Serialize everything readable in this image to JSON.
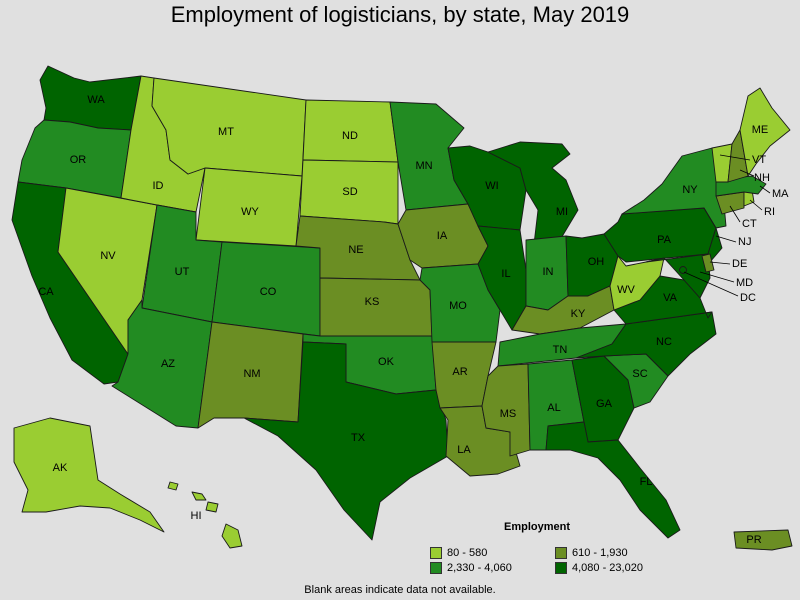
{
  "title": "Employment of logisticians, by state, May 2019",
  "legend": {
    "title": "Employment",
    "items": [
      {
        "range": "80 - 580",
        "color": "#9acd32"
      },
      {
        "range": "610 - 1,930",
        "color": "#6b8e23"
      },
      {
        "range": "2,330 - 4,060",
        "color": "#228b22"
      },
      {
        "range": "4,080 - 23,020",
        "color": "#006400"
      }
    ]
  },
  "footnote": "Blank areas indicate data not available.",
  "states": {
    "WA": {
      "label": "WA",
      "color": "#006400"
    },
    "OR": {
      "label": "OR",
      "color": "#228b22"
    },
    "CA": {
      "label": "CA",
      "color": "#006400"
    },
    "ID": {
      "label": "ID",
      "color": "#9acd32"
    },
    "NV": {
      "label": "NV",
      "color": "#9acd32"
    },
    "MT": {
      "label": "MT",
      "color": "#9acd32"
    },
    "WY": {
      "label": "WY",
      "color": "#9acd32"
    },
    "UT": {
      "label": "UT",
      "color": "#228b22"
    },
    "AZ": {
      "label": "AZ",
      "color": "#228b22"
    },
    "CO": {
      "label": "CO",
      "color": "#228b22"
    },
    "NM": {
      "label": "NM",
      "color": "#6b8e23"
    },
    "ND": {
      "label": "ND",
      "color": "#9acd32"
    },
    "SD": {
      "label": "SD",
      "color": "#9acd32"
    },
    "NE": {
      "label": "NE",
      "color": "#6b8e23"
    },
    "KS": {
      "label": "KS",
      "color": "#6b8e23"
    },
    "OK": {
      "label": "OK",
      "color": "#228b22"
    },
    "TX": {
      "label": "TX",
      "color": "#006400"
    },
    "MN": {
      "label": "MN",
      "color": "#228b22"
    },
    "IA": {
      "label": "IA",
      "color": "#6b8e23"
    },
    "MO": {
      "label": "MO",
      "color": "#228b22"
    },
    "AR": {
      "label": "AR",
      "color": "#6b8e23"
    },
    "LA": {
      "label": "LA",
      "color": "#6b8e23"
    },
    "WI": {
      "label": "WI",
      "color": "#006400"
    },
    "IL": {
      "label": "IL",
      "color": "#006400"
    },
    "MI": {
      "label": "MI",
      "color": "#006400"
    },
    "IN": {
      "label": "IN",
      "color": "#228b22"
    },
    "OH": {
      "label": "OH",
      "color": "#006400"
    },
    "KY": {
      "label": "KY",
      "color": "#6b8e23"
    },
    "TN": {
      "label": "TN",
      "color": "#228b22"
    },
    "MS": {
      "label": "MS",
      "color": "#6b8e23"
    },
    "AL": {
      "label": "AL",
      "color": "#228b22"
    },
    "GA": {
      "label": "GA",
      "color": "#006400"
    },
    "FL": {
      "label": "FL",
      "color": "#006400"
    },
    "SC": {
      "label": "SC",
      "color": "#228b22"
    },
    "NC": {
      "label": "NC",
      "color": "#006400"
    },
    "VA": {
      "label": "VA",
      "color": "#006400"
    },
    "WV": {
      "label": "WV",
      "color": "#9acd32"
    },
    "PA": {
      "label": "PA",
      "color": "#006400"
    },
    "NY": {
      "label": "NY",
      "color": "#228b22"
    },
    "NJ": {
      "label": "NJ",
      "color": "#006400"
    },
    "DE": {
      "label": "DE",
      "color": "#6b8e23"
    },
    "MD": {
      "label": "MD",
      "color": "#006400"
    },
    "DC": {
      "label": "DC",
      "color": "#006400"
    },
    "CT": {
      "label": "CT",
      "color": "#6b8e23"
    },
    "RI": {
      "label": "RI",
      "color": "#9acd32"
    },
    "MA": {
      "label": "MA",
      "color": "#228b22"
    },
    "VT": {
      "label": "VT",
      "color": "#9acd32"
    },
    "NH": {
      "label": "NH",
      "color": "#6b8e23"
    },
    "ME": {
      "label": "ME",
      "color": "#9acd32"
    },
    "AK": {
      "label": "AK",
      "color": "#9acd32"
    },
    "HI": {
      "label": "HI",
      "color": "#9acd32"
    },
    "PR": {
      "label": "PR",
      "color": "#6b8e23"
    }
  }
}
